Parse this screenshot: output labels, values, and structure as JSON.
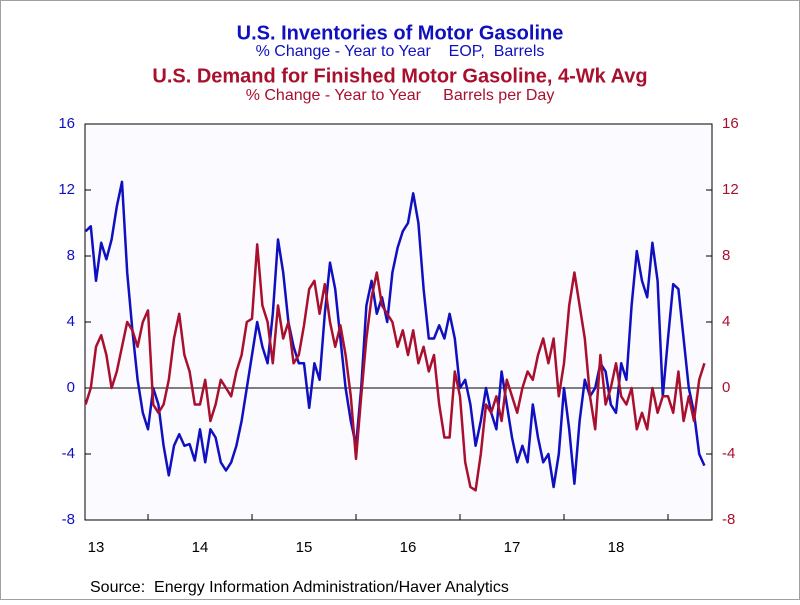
{
  "chart_data": {
    "type": "line",
    "title": "U.S. Inventories of Motor Gasoline",
    "subtitle": "% Change - Year to Year    EOP,  Barrels",
    "title2": "U.S. Demand for Finished Motor Gasoline, 4-Wk Avg",
    "subtitle2": "% Change - Year to Year     Barrels per Day",
    "source": "Source:  Energy Information Administration/Haver Analytics",
    "xlim": [
      2013.394,
      2019.423
    ],
    "xticks": [
      {
        "value": 2013.5,
        "label": "13"
      },
      {
        "value": 2014.5,
        "label": "14"
      },
      {
        "value": 2015.5,
        "label": "15"
      },
      {
        "value": 2016.5,
        "label": "16"
      },
      {
        "value": 2017.5,
        "label": "17"
      },
      {
        "value": 2018.5,
        "label": "18"
      }
    ],
    "year_boundaries": [
      2014,
      2015,
      2016,
      2017,
      2018,
      2019
    ],
    "ylim": [
      -8,
      16
    ],
    "yticks": [
      -8,
      -4,
      0,
      4,
      8,
      12,
      16
    ],
    "y2lim": [
      -8,
      16
    ],
    "y2ticks": [
      -8,
      -4,
      0,
      4,
      8,
      12,
      16
    ],
    "zero_line": 0,
    "x": [
      2013.4,
      2013.45,
      2013.5,
      2013.55,
      2013.6,
      2013.65,
      2013.7,
      2013.75,
      2013.8,
      2013.85,
      2013.9,
      2013.95,
      2014,
      2014.05,
      2014.1,
      2014.15,
      2014.2,
      2014.25,
      2014.3,
      2014.35,
      2014.4,
      2014.45,
      2014.5,
      2014.55,
      2014.6,
      2014.65,
      2014.7,
      2014.75,
      2014.8,
      2014.85,
      2014.9,
      2014.95,
      2015,
      2015.05,
      2015.1,
      2015.15,
      2015.2,
      2015.25,
      2015.3,
      2015.35,
      2015.4,
      2015.45,
      2015.5,
      2015.55,
      2015.6,
      2015.65,
      2015.7,
      2015.75,
      2015.8,
      2015.85,
      2015.9,
      2015.95,
      2016,
      2016.05,
      2016.1,
      2016.15,
      2016.2,
      2016.25,
      2016.3,
      2016.35,
      2016.4,
      2016.45,
      2016.5,
      2016.55,
      2016.6,
      2016.65,
      2016.7,
      2016.75,
      2016.8,
      2016.85,
      2016.9,
      2016.95,
      2017,
      2017.05,
      2017.1,
      2017.15,
      2017.2,
      2017.25,
      2017.3,
      2017.35,
      2017.4,
      2017.45,
      2017.5,
      2017.55,
      2017.6,
      2017.65,
      2017.7,
      2017.75,
      2017.8,
      2017.85,
      2017.9,
      2017.95,
      2018,
      2018.05,
      2018.1,
      2018.15,
      2018.2,
      2018.25,
      2018.3,
      2018.35,
      2018.4,
      2018.45,
      2018.5,
      2018.55,
      2018.6,
      2018.65,
      2018.7,
      2018.75,
      2018.8,
      2018.85,
      2018.9,
      2018.95,
      2019,
      2019.05,
      2019.1,
      2019.15,
      2019.2,
      2019.25,
      2019.3,
      2019.35
    ],
    "series": [
      {
        "name": "U.S. Inventories of Motor Gasoline",
        "color": "#1010c0",
        "axis": "y",
        "values": [
          9.5,
          9.8,
          6.5,
          8.8,
          7.8,
          9,
          11,
          12.5,
          7,
          3.5,
          0.5,
          -1.5,
          -2.5,
          0,
          -1,
          -3.5,
          -5.3,
          -3.5,
          -2.8,
          -3.5,
          -3.4,
          -4.4,
          -2.5,
          -4.5,
          -2.5,
          -3,
          -4.5,
          -5,
          -4.5,
          -3.5,
          -2,
          0,
          2,
          4,
          2.5,
          1.5,
          4.5,
          9,
          7,
          4,
          2.5,
          1.5,
          1.5,
          -1.2,
          1.5,
          0.5,
          4.5,
          7.6,
          6,
          3,
          0,
          -2,
          -3.5,
          0,
          5,
          6.5,
          4.5,
          5.5,
          4,
          7,
          8.5,
          9.5,
          10,
          11.8,
          10,
          6,
          3,
          3,
          3.8,
          3,
          4.5,
          3,
          0,
          0.5,
          -1,
          -3.5,
          -2,
          0,
          -1.5,
          -2.5,
          1,
          -1,
          -3,
          -4.5,
          -3.5,
          -4.5,
          -1,
          -3,
          -4.5,
          -4,
          -6,
          -4,
          0,
          -2.5,
          -5.8,
          -2,
          0.5,
          -0.5,
          0,
          1.5,
          1,
          -1,
          -1.5,
          1.5,
          0.5,
          5,
          8.3,
          6.5,
          5.5,
          8.8,
          6.5,
          -0.5,
          3,
          6.3,
          6,
          3,
          0,
          -1.5,
          -4,
          -4.7
        ]
      },
      {
        "name": "U.S. Demand for Finished Motor Gasoline, 4-Wk Avg",
        "color": "#a8102e",
        "axis": "y2",
        "values": [
          -1,
          0,
          2.5,
          3.2,
          2,
          0,
          1,
          2.5,
          4,
          3.5,
          2.5,
          4,
          4.7,
          -1,
          -1.5,
          -1,
          0.5,
          3,
          4.5,
          2,
          1,
          -1,
          -1,
          0.5,
          -2,
          -1,
          0.5,
          0,
          -0.5,
          1,
          2,
          4,
          4.2,
          8.7,
          5,
          4,
          1.5,
          5,
          3,
          4,
          1.5,
          2,
          3.8,
          6,
          6.5,
          4.5,
          6.3,
          4,
          2.5,
          3.8,
          2,
          -0.5,
          -4.3,
          -0.5,
          3,
          5.5,
          7,
          5,
          4.5,
          4,
          2.5,
          3.5,
          2,
          3.5,
          1.5,
          2.5,
          1,
          2,
          -1,
          -3,
          -3,
          1,
          -0.5,
          -4.5,
          -6,
          -6.2,
          -4,
          -1,
          -1.5,
          -0.5,
          -2,
          0.5,
          -0.5,
          -1.5,
          0,
          1,
          0.5,
          2,
          3,
          1.5,
          3,
          -0.5,
          1.5,
          5,
          7,
          5,
          3,
          -0.5,
          -2.5,
          2,
          -1,
          0,
          1.5,
          -0.5,
          -1,
          0,
          -2.5,
          -1.5,
          -2.5,
          0,
          -1.5,
          -0.5,
          -0.5,
          -1.5,
          1,
          -2,
          -0.5,
          -2,
          0.5,
          1.5
        ]
      }
    ]
  }
}
